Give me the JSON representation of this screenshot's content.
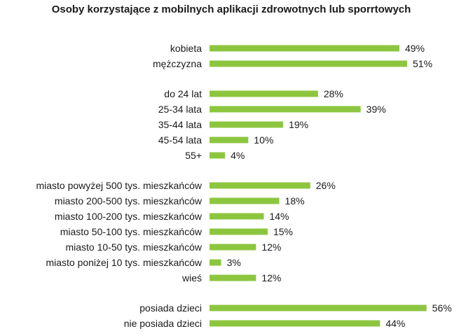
{
  "chart_data": {
    "type": "bar",
    "orientation": "horizontal",
    "title": "Osoby korzystające z mobilnych aplikacji zdrowotnych lub sporrtowych",
    "xlabel": "",
    "ylabel": "",
    "value_suffix": "%",
    "xlim": [
      0,
      60
    ],
    "grid": false,
    "legend": "none",
    "bar_color": "#8cc63f",
    "groups": [
      {
        "categories": [
          "kobieta",
          "mężczyzna"
        ],
        "values": [
          49,
          51
        ]
      },
      {
        "categories": [
          "do 24 lat",
          "25-34 lata",
          "35-44 lata",
          "45-54 lata",
          "55+"
        ],
        "values": [
          28,
          39,
          19,
          10,
          4
        ]
      },
      {
        "categories": [
          "miasto powyżej 500 tys. mieszkańców",
          "miasto 200-500 tys. mieszkańców",
          "miasto 100-200 tys. mieszkańców",
          "miasto 50-100 tys. mieszkańców",
          "miasto 10-50 tys. mieszkańców",
          "miasto poniżej 10 tys. mieszkańców",
          "wieś"
        ],
        "values": [
          26,
          18,
          14,
          15,
          12,
          3,
          12
        ]
      },
      {
        "categories": [
          "posiada dzieci",
          "nie posiada dzieci"
        ],
        "values": [
          56,
          44
        ]
      }
    ]
  }
}
